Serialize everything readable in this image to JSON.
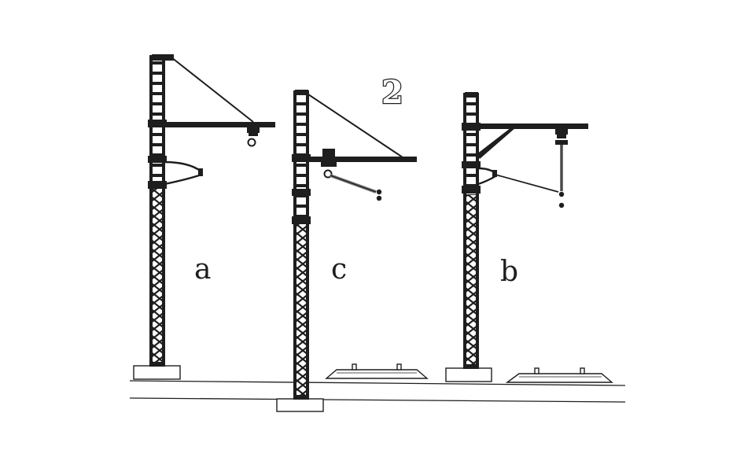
{
  "figure": {
    "number": "2",
    "labels": {
      "a": "a",
      "c": "c",
      "b": "b"
    }
  },
  "colors": {
    "ink": "#1e1e1e",
    "light_ink": "#777777",
    "paper": "#ffffff"
  }
}
